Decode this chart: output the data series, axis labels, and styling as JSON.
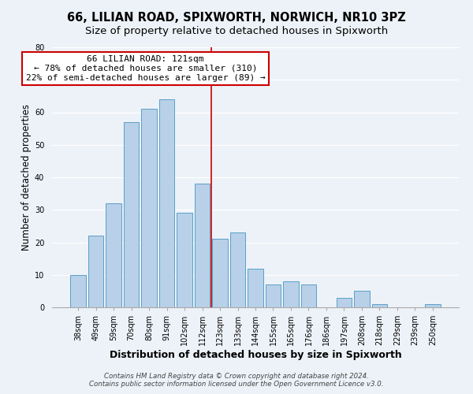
{
  "title": "66, LILIAN ROAD, SPIXWORTH, NORWICH, NR10 3PZ",
  "subtitle": "Size of property relative to detached houses in Spixworth",
  "xlabel": "Distribution of detached houses by size in Spixworth",
  "ylabel": "Number of detached properties",
  "bar_labels": [
    "38sqm",
    "49sqm",
    "59sqm",
    "70sqm",
    "80sqm",
    "91sqm",
    "102sqm",
    "112sqm",
    "123sqm",
    "133sqm",
    "144sqm",
    "155sqm",
    "165sqm",
    "176sqm",
    "186sqm",
    "197sqm",
    "208sqm",
    "218sqm",
    "229sqm",
    "239sqm",
    "250sqm"
  ],
  "bar_values": [
    10,
    22,
    32,
    57,
    61,
    64,
    29,
    38,
    21,
    23,
    12,
    7,
    8,
    7,
    0,
    3,
    5,
    1,
    0,
    0,
    1
  ],
  "bar_color": "#b8d0e8",
  "bar_edge_color": "#5a9fc8",
  "property_line_index": 8,
  "annotation_title": "66 LILIAN ROAD: 121sqm",
  "annotation_line1": "← 78% of detached houses are smaller (310)",
  "annotation_line2": "22% of semi-detached houses are larger (89) →",
  "annotation_box_color": "#ffffff",
  "annotation_box_edge": "#cc0000",
  "vline_color": "#cc0000",
  "ylim": [
    0,
    80
  ],
  "yticks": [
    0,
    10,
    20,
    30,
    40,
    50,
    60,
    70,
    80
  ],
  "footer_line1": "Contains HM Land Registry data © Crown copyright and database right 2024.",
  "footer_line2": "Contains public sector information licensed under the Open Government Licence v3.0.",
  "background_color": "#edf2f8",
  "title_fontsize": 10.5,
  "subtitle_fontsize": 9.5,
  "xlabel_fontsize": 9,
  "ylabel_fontsize": 8.5,
  "tick_fontsize": 7,
  "annotation_fontsize": 8
}
